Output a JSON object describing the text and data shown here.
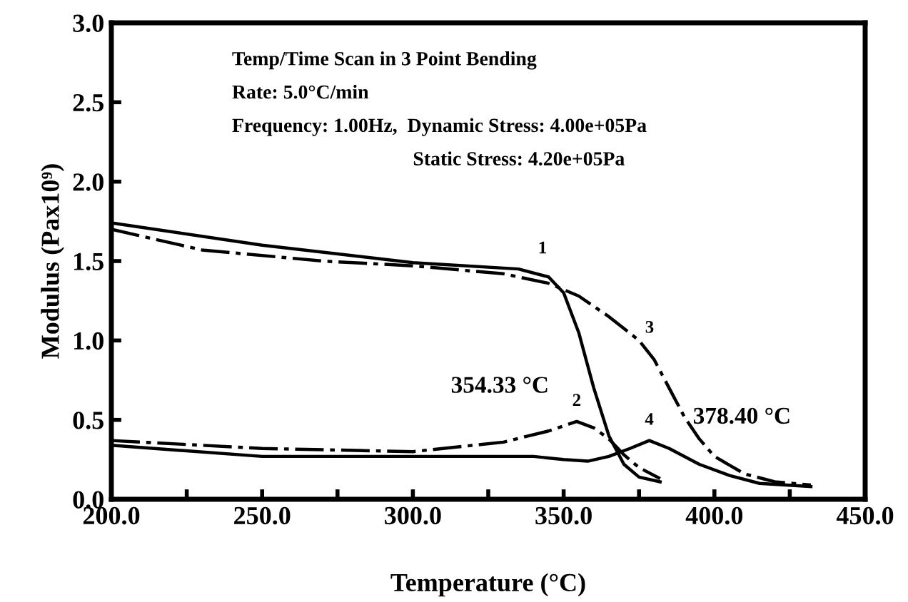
{
  "chart_data": {
    "type": "line",
    "xlabel": "Temperature (°C)",
    "ylabel": "Modulus (Pax10⁹)",
    "xlim": [
      200,
      450
    ],
    "ylim": [
      0,
      3
    ],
    "xticks": [
      {
        "value": 200,
        "label": "200.0"
      },
      {
        "value": 225,
        "label": null
      },
      {
        "value": 250,
        "label": "250.0"
      },
      {
        "value": 275,
        "label": null
      },
      {
        "value": 300,
        "label": "300.0"
      },
      {
        "value": 325,
        "label": null
      },
      {
        "value": 350,
        "label": "350.0"
      },
      {
        "value": 375,
        "label": null
      },
      {
        "value": 400,
        "label": "400.0"
      },
      {
        "value": 425,
        "label": null
      },
      {
        "value": 450,
        "label": "450.0"
      }
    ],
    "yticks": [
      {
        "value": 0,
        "label": "0.0"
      },
      {
        "value": 0.5,
        "label": "0.5"
      },
      {
        "value": 1,
        "label": "1.0"
      },
      {
        "value": 1.5,
        "label": "1.5"
      },
      {
        "value": 2,
        "label": "2.0"
      },
      {
        "value": 2.5,
        "label": "2.5"
      },
      {
        "value": 3,
        "label": "3.0"
      }
    ],
    "grid": false,
    "legend": false,
    "marker": "none",
    "series": [
      {
        "color": "#000000",
        "line_style": "solid",
        "x": [
          200,
          250,
          300,
          335,
          345,
          350,
          355,
          360,
          365,
          370,
          375,
          382
        ],
        "values": [
          1.74,
          1.6,
          1.49,
          1.45,
          1.4,
          1.3,
          1.05,
          0.7,
          0.4,
          0.22,
          0.14,
          0.11
        ]
      },
      {
        "color": "#000000",
        "line_style": "dashed",
        "x": [
          200,
          250,
          300,
          330,
          345,
          354.33,
          360,
          365,
          370,
          375,
          382
        ],
        "values": [
          0.37,
          0.32,
          0.3,
          0.36,
          0.43,
          0.49,
          0.45,
          0.38,
          0.28,
          0.2,
          0.13
        ]
      },
      {
        "color": "#000000",
        "line_style": "dashed",
        "x": [
          200,
          230,
          270,
          300,
          330,
          345,
          355,
          365,
          375,
          380,
          385,
          390,
          395,
          400,
          410,
          420,
          432
        ],
        "values": [
          1.7,
          1.57,
          1.5,
          1.47,
          1.42,
          1.36,
          1.28,
          1.15,
          1.0,
          0.88,
          0.7,
          0.52,
          0.38,
          0.27,
          0.16,
          0.11,
          0.09
        ]
      },
      {
        "color": "#000000",
        "line_style": "solid",
        "x": [
          200,
          250,
          300,
          340,
          350,
          358,
          365,
          372,
          378.4,
          385,
          395,
          405,
          415,
          432
        ],
        "values": [
          0.34,
          0.27,
          0.27,
          0.27,
          0.25,
          0.24,
          0.27,
          0.32,
          0.37,
          0.32,
          0.22,
          0.15,
          0.1,
          0.08
        ]
      }
    ],
    "annotations": [
      "Temp/Time Scan in 3 Point Bending",
      "Rate: 5.0°C/min",
      "Frequency: 1.00Hz,  Dynamic Stress: 4.00e+05Pa",
      "Static Stress: 4.20e+05Pa",
      {
        "text": "1",
        "x": 343,
        "y": 1.45
      },
      {
        "text": "2",
        "x": 354.33,
        "y": 0.49
      },
      {
        "text": "3",
        "x": 378.5,
        "y": 0.95
      },
      {
        "text": "4",
        "x": 378.4,
        "y": 0.37
      },
      {
        "text": "354.33 °C",
        "x": 354.33,
        "y": 0.49
      },
      {
        "text": "378.40 °C",
        "x": 378.4,
        "y": 0.37
      }
    ]
  }
}
